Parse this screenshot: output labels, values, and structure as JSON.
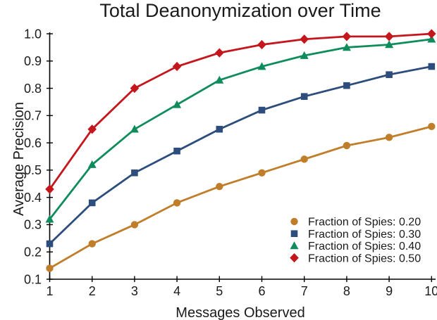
{
  "chart_data": {
    "type": "line",
    "title": "Total Deanonymization over Time",
    "xlabel": "Messages Observed",
    "ylabel": "Average Precision",
    "x": [
      1,
      2,
      3,
      4,
      5,
      6,
      7,
      8,
      9,
      10
    ],
    "x_tick_labels": [
      "1",
      "2",
      "3",
      "4",
      "5",
      "6",
      "7",
      "8",
      "9",
      "10"
    ],
    "y_ticks": [
      0.1,
      0.2,
      0.3,
      0.4,
      0.5,
      0.6,
      0.7,
      0.8,
      0.9,
      1.0
    ],
    "y_tick_labels": [
      "0.1",
      "0.2",
      "0.3",
      "0.4",
      "0.5",
      "0.6",
      "0.7",
      "0.8",
      "0.9",
      "1.0"
    ],
    "xlim": [
      1,
      10
    ],
    "ylim": [
      0.1,
      1.0
    ],
    "grid": false,
    "legend_position": "lower-right-inside",
    "axis_color": "#000000",
    "text_color": "#1a1a1a",
    "series": [
      {
        "name": "Fraction of Spies: 0.20",
        "marker": "circle",
        "color": "#C07E2B",
        "values": [
          0.14,
          0.23,
          0.3,
          0.38,
          0.44,
          0.49,
          0.54,
          0.59,
          0.62,
          0.66
        ]
      },
      {
        "name": "Fraction of Spies: 0.30",
        "marker": "square",
        "color": "#2D4D7C",
        "values": [
          0.23,
          0.38,
          0.49,
          0.57,
          0.65,
          0.72,
          0.77,
          0.81,
          0.85,
          0.88
        ]
      },
      {
        "name": "Fraction of Spies: 0.40",
        "marker": "triangle",
        "color": "#0E8C5B",
        "values": [
          0.32,
          0.52,
          0.65,
          0.74,
          0.83,
          0.88,
          0.92,
          0.95,
          0.96,
          0.98
        ]
      },
      {
        "name": "Fraction of Spies: 0.50",
        "marker": "diamond",
        "color": "#C4161C",
        "values": [
          0.43,
          0.65,
          0.8,
          0.88,
          0.93,
          0.96,
          0.98,
          0.99,
          0.99,
          1.0
        ]
      }
    ]
  }
}
